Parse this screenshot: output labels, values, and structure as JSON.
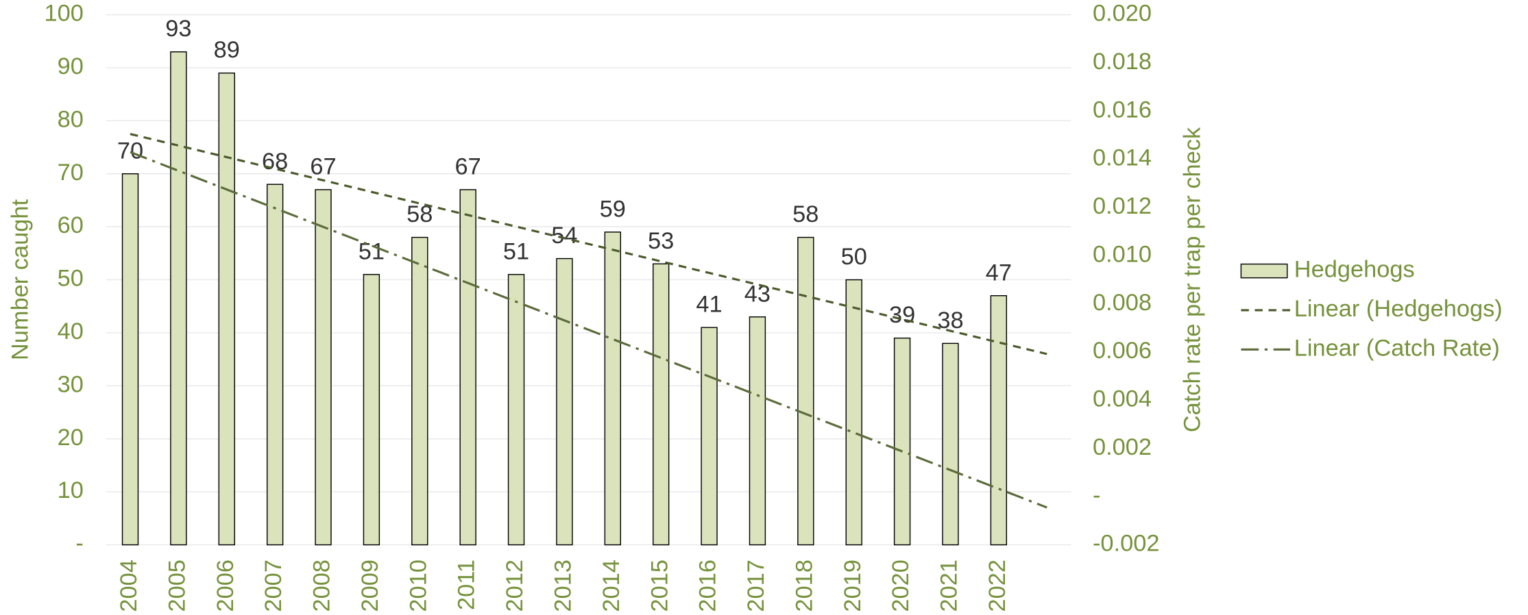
{
  "chart_data": {
    "type": "bar",
    "y_axis_label": "Number caught",
    "y2_axis_label": "Catch rate per trap per check",
    "categories": [
      "2004",
      "2005",
      "2006",
      "2007",
      "2008",
      "2009",
      "2010",
      "2011",
      "2012",
      "2013",
      "2014",
      "2015",
      "2016",
      "2017",
      "2018",
      "2019",
      "2020",
      "2021",
      "2022",
      null
    ],
    "series": [
      {
        "name": "Hedgehogs",
        "color": "#dbe3bd",
        "values": [
          70,
          93,
          89,
          68,
          67,
          51,
          58,
          67,
          51,
          54,
          59,
          53,
          41,
          43,
          58,
          50,
          39,
          38,
          47,
          null
        ]
      }
    ],
    "trendlines": [
      {
        "name": "Linear (Hedgehogs)",
        "color": "#4b5a2c",
        "dash": "8 6",
        "values": [
          77.5,
          36
        ]
      },
      {
        "name": "Linear (Catch Rate)",
        "color": "#5b6b3a",
        "dash": "18 6 3 6",
        "axis": "y2",
        "values": [
          0.0143,
          -0.00045
        ]
      }
    ],
    "ylim": [
      0,
      100
    ],
    "yticks": [
      {
        "value": 0,
        "label": "-"
      },
      10,
      20,
      30,
      40,
      50,
      60,
      70,
      80,
      90,
      100
    ],
    "y2lim": [
      -0.002,
      0.02
    ],
    "y2ticks": [
      -0.002,
      {
        "value": 0,
        "label": "-"
      },
      0.002,
      0.004,
      0.006,
      0.008,
      {
        "value": 0.01,
        "label": "0.010"
      },
      0.012,
      0.014,
      0.016,
      0.018,
      {
        "value": 0.02,
        "label": "0.020"
      }
    ],
    "grid": true,
    "legend": "right"
  }
}
